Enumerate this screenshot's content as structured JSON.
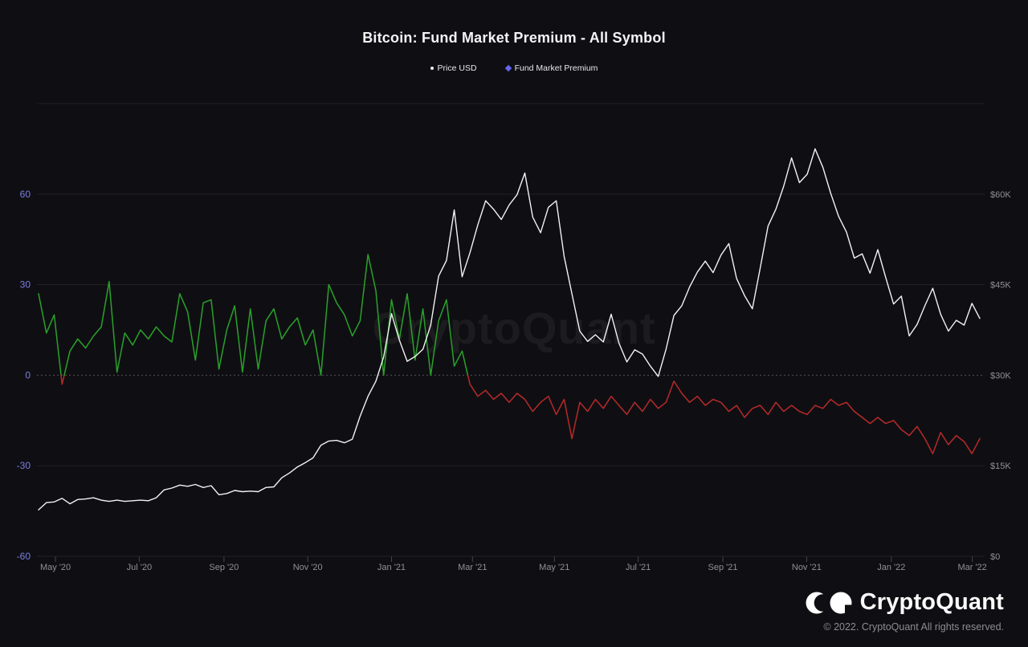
{
  "title": "Bitcoin: Fund Market Premium - All Symbol",
  "legend": [
    {
      "label": "Price USD",
      "marker": "dot",
      "color": "#f2f2f4"
    },
    {
      "label": "Fund Market Premium",
      "marker": "diamond",
      "color": "#6565ef"
    }
  ],
  "watermark": "CryptoQuant",
  "footer": {
    "brand": "CryptoQuant",
    "copyright": "© 2022. CryptoQuant All rights reserved."
  },
  "colors": {
    "background": "#0f0f13",
    "price_line": "#f2f2f4",
    "premium_positive": "#2aa12a",
    "premium_negative": "#b72929",
    "left_axis_text": "#7d7de2",
    "right_axis_text": "#8f8f96"
  },
  "chart_data": {
    "type": "line",
    "title": "Bitcoin: Fund Market Premium - All Symbol",
    "x_ticks": [
      {
        "label": "May '20",
        "pos": 0.018
      },
      {
        "label": "Jul '20",
        "pos": 0.107
      },
      {
        "label": "Sep '20",
        "pos": 0.197
      },
      {
        "label": "Nov '20",
        "pos": 0.286
      },
      {
        "label": "Jan '21",
        "pos": 0.375
      },
      {
        "label": "Mar '21",
        "pos": 0.461
      },
      {
        "label": "May '21",
        "pos": 0.548
      },
      {
        "label": "Jul '21",
        "pos": 0.637
      },
      {
        "label": "Sep '21",
        "pos": 0.727
      },
      {
        "label": "Nov '21",
        "pos": 0.816
      },
      {
        "label": "Jan '22",
        "pos": 0.906
      },
      {
        "label": "Mar '22",
        "pos": 0.992
      }
    ],
    "left_axis": {
      "name": "Fund Market Premium",
      "ticks": [
        60,
        30,
        0,
        -30,
        -60
      ],
      "grid_values": [
        90,
        60,
        30,
        0,
        -30,
        -60
      ],
      "range": [
        -60,
        90
      ],
      "zero_value": 0
    },
    "right_axis": {
      "name": "Price USD",
      "tick_labels": [
        "$60K",
        "$45K",
        "$30K",
        "$15K",
        "$0"
      ],
      "tick_values": [
        60,
        45,
        30,
        15,
        0
      ],
      "range": [
        0,
        75
      ],
      "unit": "thousand USD"
    },
    "series": [
      {
        "name": "Price USD",
        "axis": "right",
        "unit": "thousand USD",
        "color": "#f2f2f4",
        "values": [
          7.7,
          8.9,
          9.0,
          9.6,
          8.7,
          9.4,
          9.5,
          9.7,
          9.3,
          9.1,
          9.3,
          9.1,
          9.2,
          9.3,
          9.2,
          9.7,
          11.0,
          11.3,
          11.8,
          11.6,
          11.9,
          11.4,
          11.7,
          10.2,
          10.4,
          10.9,
          10.7,
          10.8,
          10.7,
          11.4,
          11.5,
          13.0,
          13.8,
          14.8,
          15.5,
          16.3,
          18.4,
          19.1,
          19.2,
          18.8,
          19.4,
          23.2,
          26.5,
          29.0,
          33.0,
          40.2,
          35.8,
          32.3,
          33.1,
          34.3,
          38.3,
          46.4,
          49.0,
          57.4,
          46.3,
          50.3,
          54.9,
          58.9,
          57.5,
          55.8,
          58.2,
          59.9,
          63.5,
          56.2,
          53.6,
          57.8,
          58.9,
          49.7,
          43.5,
          37.3,
          35.6,
          36.7,
          35.5,
          40.1,
          35.3,
          32.2,
          34.2,
          33.5,
          31.5,
          29.8,
          34.3,
          39.9,
          41.5,
          44.6,
          47.1,
          48.9,
          47.0,
          49.9,
          51.8,
          46.0,
          43.2,
          41.0,
          47.7,
          54.7,
          57.5,
          61.3,
          66.0,
          61.9,
          63.3,
          67.5,
          64.4,
          60.1,
          56.3,
          53.7,
          49.4,
          50.1,
          46.9,
          50.8,
          46.2,
          41.8,
          43.1,
          36.5,
          38.4,
          41.5,
          44.4,
          40.1,
          37.3,
          39.1,
          38.3,
          41.9,
          39.4
        ]
      },
      {
        "name": "Fund Market Premium",
        "axis": "left",
        "color_positive": "#2aa12a",
        "color_negative": "#b72929",
        "values": [
          27,
          14,
          20,
          -3,
          8,
          12,
          9,
          13,
          16,
          31,
          1,
          14,
          10,
          15,
          12,
          16,
          13,
          11,
          27,
          21,
          5,
          24,
          25,
          2,
          15,
          23,
          1,
          22,
          2,
          18,
          22,
          12,
          16,
          19,
          10,
          15,
          0,
          30,
          24,
          20,
          13,
          18,
          40,
          28,
          0,
          25,
          12,
          27,
          5,
          22,
          0,
          18,
          25,
          3,
          8,
          -3,
          -7,
          -5,
          -8,
          -6,
          -9,
          -6,
          -8,
          -12,
          -9,
          -7,
          -13,
          -8,
          -21,
          -9,
          -12,
          -8,
          -11,
          -7,
          -10,
          -13,
          -9,
          -12,
          -8,
          -11,
          -9,
          -2,
          -6,
          -9,
          -7,
          -10,
          -8,
          -9,
          -12,
          -10,
          -14,
          -11,
          -10,
          -13,
          -9,
          -12,
          -10,
          -12,
          -13,
          -10,
          -11,
          -8,
          -10,
          -9,
          -12,
          -14,
          -16,
          -14,
          -16,
          -15,
          -18,
          -20,
          -17,
          -21,
          -26,
          -19,
          -23,
          -20,
          -22,
          -26,
          -21
        ]
      }
    ],
    "x_span_note": "index 0 = late Apr 2020, last index = early Mar 2022, evenly spaced"
  }
}
